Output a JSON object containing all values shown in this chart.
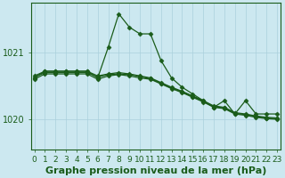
{
  "background_color": "#cce8f0",
  "grid_color": "#aad0dc",
  "line_color": "#1a5c1a",
  "xlabel": "Graphe pression niveau de la mer (hPa)",
  "xlabel_fontsize": 8,
  "xticks": [
    0,
    1,
    2,
    3,
    4,
    5,
    6,
    7,
    8,
    9,
    10,
    11,
    12,
    13,
    14,
    15,
    16,
    17,
    18,
    19,
    20,
    21,
    22,
    23
  ],
  "ytick_labels": [
    "1020",
    "1021"
  ],
  "ytick_vals": [
    1020.0,
    1021.0
  ],
  "ylim": [
    1019.55,
    1021.75
  ],
  "xlim": [
    -0.3,
    23.3
  ],
  "series": [
    {
      "x": [
        0,
        1,
        2,
        3,
        4,
        5,
        6,
        7,
        8,
        9,
        10,
        11,
        12,
        13,
        14,
        15,
        16,
        17,
        18,
        19,
        20,
        21,
        22,
        23
      ],
      "y": [
        1020.62,
        1020.72,
        1020.72,
        1020.72,
        1020.72,
        1020.72,
        1020.62,
        1021.08,
        1021.58,
        1021.38,
        1021.28,
        1021.28,
        1020.88,
        1020.62,
        1020.48,
        1020.38,
        1020.28,
        1020.18,
        1020.28,
        1020.08,
        1020.28,
        1020.08,
        1020.08,
        1020.08
      ],
      "has_marker": true
    },
    {
      "x": [
        0,
        1,
        2,
        3,
        4,
        5,
        6,
        7,
        8,
        9,
        10,
        11,
        12,
        13,
        14,
        15,
        16,
        17,
        18,
        19,
        20,
        21,
        22,
        23
      ],
      "y": [
        1020.65,
        1020.72,
        1020.72,
        1020.72,
        1020.72,
        1020.72,
        1020.65,
        1020.68,
        1020.7,
        1020.68,
        1020.65,
        1020.62,
        1020.55,
        1020.48,
        1020.42,
        1020.35,
        1020.28,
        1020.2,
        1020.18,
        1020.1,
        1020.08,
        1020.05,
        1020.03,
        1020.02
      ],
      "has_marker": true
    },
    {
      "x": [
        0,
        1,
        2,
        3,
        4,
        5,
        6,
        7,
        8,
        9,
        10,
        11,
        12,
        13,
        14,
        15,
        16,
        17,
        18,
        19,
        20,
        21,
        22,
        23
      ],
      "y": [
        1020.63,
        1020.7,
        1020.7,
        1020.7,
        1020.7,
        1020.7,
        1020.63,
        1020.67,
        1020.68,
        1020.67,
        1020.64,
        1020.61,
        1020.54,
        1020.47,
        1020.41,
        1020.34,
        1020.27,
        1020.19,
        1020.17,
        1020.09,
        1020.07,
        1020.04,
        1020.02,
        1020.01
      ],
      "has_marker": true
    },
    {
      "x": [
        0,
        1,
        2,
        3,
        4,
        5,
        6,
        7,
        8,
        9,
        10,
        11,
        12,
        13,
        14,
        15,
        16,
        17,
        18,
        19,
        20,
        21,
        22,
        23
      ],
      "y": [
        1020.6,
        1020.68,
        1020.68,
        1020.68,
        1020.68,
        1020.68,
        1020.6,
        1020.65,
        1020.67,
        1020.65,
        1020.62,
        1020.6,
        1020.53,
        1020.46,
        1020.4,
        1020.33,
        1020.26,
        1020.18,
        1020.16,
        1020.08,
        1020.06,
        1020.03,
        1020.01,
        1020.0
      ],
      "has_marker": true
    }
  ],
  "marker": "D",
  "marker_size": 2.5,
  "linewidth": 0.9,
  "tick_fontsize": 6.5,
  "border_color": "#1a5c1a"
}
